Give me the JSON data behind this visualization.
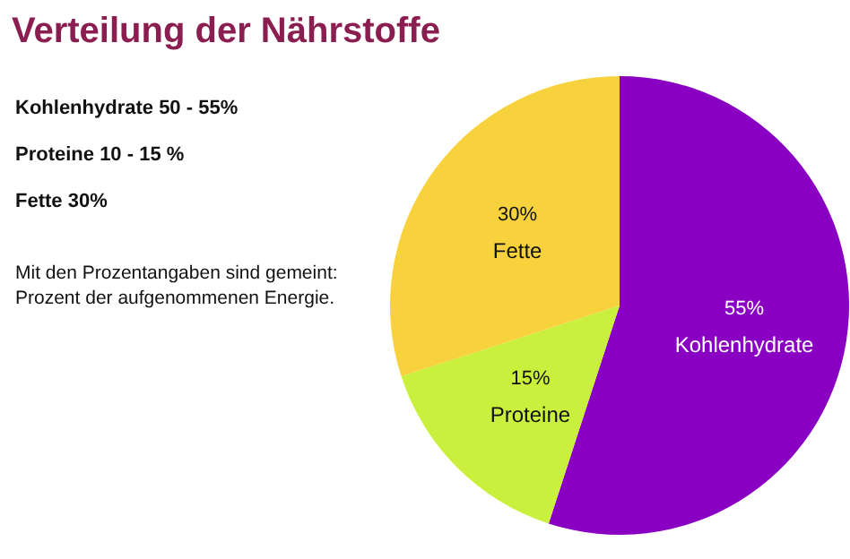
{
  "chart_data": {
    "type": "pie",
    "title": "Verteilung der Nährstoffe",
    "categories": [
      "Kohlenhydrate",
      "Proteine",
      "Fette"
    ],
    "values": [
      55,
      15,
      30
    ],
    "colors": [
      "#8a00c2",
      "#c8f03c",
      "#f8d23c"
    ],
    "value_labels": [
      "55%",
      "15%",
      "30%"
    ],
    "annotations": [
      "Kohlenhydrate 50 - 55%",
      "Proteine 10 - 15 %",
      "Fette 30%",
      "Mit den Prozentangaben sind gemeint:",
      "Prozent der aufgenommenen Energie."
    ]
  }
}
